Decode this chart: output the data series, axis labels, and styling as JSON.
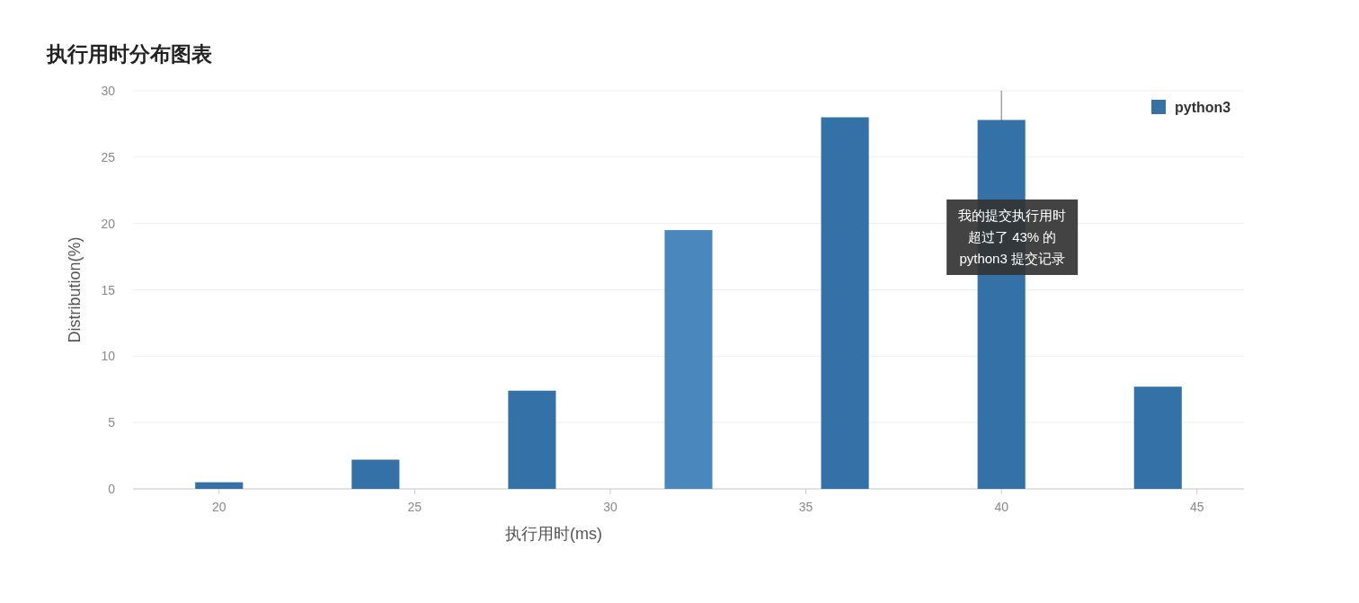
{
  "chart_data": {
    "type": "bar",
    "title": "执行用时分布图表",
    "xlabel": "执行用时(ms)",
    "ylabel": "Distribution(%)",
    "x": [
      20,
      24,
      28,
      32,
      36,
      40,
      44
    ],
    "series": [
      {
        "name": "python3",
        "color": "#3471a6",
        "values": [
          0.5,
          2.2,
          7.4,
          19.5,
          28.0,
          27.8,
          7.7
        ],
        "colors": [
          "#3471a6",
          "#3471a6",
          "#3471a6",
          "#4a87bc",
          "#3471a6",
          "#3471a6",
          "#3471a6"
        ]
      }
    ],
    "xlim": [
      17.8,
      46.2
    ],
    "xticks": [
      20,
      25,
      30,
      35,
      40,
      45
    ],
    "ylim": [
      0,
      30
    ],
    "yticks": [
      0,
      5,
      10,
      15,
      20,
      25,
      30
    ],
    "grid": "y",
    "legend": "top right",
    "ref_lines": [
      {
        "axis": "x",
        "value": 40,
        "color": "#777777"
      }
    ],
    "annotations": [
      "我的提交执行用时",
      "超过了 43% 的",
      "python3 提交记录"
    ]
  }
}
